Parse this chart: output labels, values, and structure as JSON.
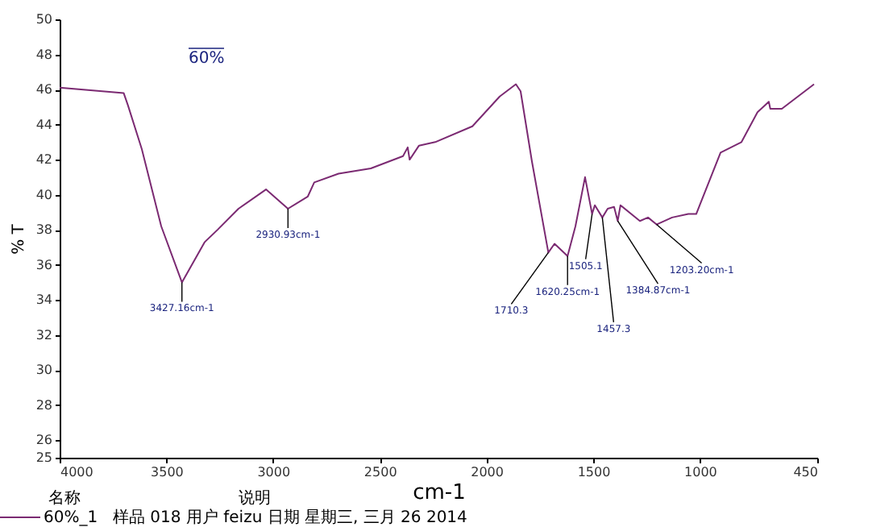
{
  "chart_data": {
    "type": "line",
    "xlabel": "cm-1",
    "ylabel": "% T",
    "x": [
      4000,
      3700,
      3680,
      3615,
      3524,
      3427,
      3320,
      3260,
      3162,
      3033,
      2930,
      2837,
      2807,
      2693,
      2542,
      2391,
      2369,
      2360,
      2316,
      2240,
      2066,
      1938,
      1862,
      1840,
      1787,
      1710,
      1681,
      1620,
      1583,
      1538,
      1505,
      1492,
      1457,
      1432,
      1402,
      1385,
      1372,
      1281,
      1243,
      1203,
      1130,
      1054,
      1017,
      903,
      805,
      730,
      677,
      670,
      616,
      465
    ],
    "series": [
      {
        "name": "60%_1",
        "color": "#7b2a72",
        "values": [
          46.1,
          45.8,
          45.1,
          42.6,
          38.2,
          35.0,
          37.3,
          38.0,
          39.2,
          40.3,
          39.2,
          39.9,
          40.7,
          41.2,
          41.5,
          42.2,
          42.7,
          42.0,
          42.8,
          43.0,
          43.9,
          45.6,
          46.3,
          45.9,
          41.9,
          36.7,
          37.2,
          36.5,
          38.2,
          41.0,
          38.9,
          39.4,
          38.7,
          39.2,
          39.3,
          38.5,
          39.4,
          38.5,
          38.7,
          38.3,
          38.7,
          38.9,
          38.9,
          42.4,
          43.0,
          44.7,
          45.3,
          44.9,
          44.9,
          46.3
        ]
      }
    ],
    "xlim": [
      4000,
      450
    ],
    "xticks": [
      4000,
      3500,
      3000,
      2500,
      2000,
      1500,
      1000,
      450
    ],
    "ylim": [
      25,
      50
    ],
    "yticks": [
      25,
      26,
      28,
      30,
      32,
      34,
      36,
      38,
      40,
      42,
      44,
      46,
      48,
      50
    ],
    "grid": false,
    "legend": "bottom",
    "line_style": "solid",
    "marker": "none",
    "annotations": [
      {
        "text": "3427.16cm-1",
        "x": 3427,
        "y": 35.0
      },
      {
        "text": "2930.93cm-1",
        "x": 2930,
        "y": 39.2
      },
      {
        "text": "1710.3",
        "x": 1710,
        "y": 36.7
      },
      {
        "text": "1620.25cm-1",
        "x": 1620,
        "y": 36.5
      },
      {
        "text": "1505.1",
        "x": 1505,
        "y": 38.9
      },
      {
        "text": "1457.3",
        "x": 1457,
        "y": 38.7
      },
      {
        "text": "1384.87cm-1",
        "x": 1385,
        "y": 38.5
      },
      {
        "text": "1203.20cm-1",
        "x": 1203,
        "y": 38.3
      },
      "60%",
      "名称",
      "说明",
      "样品 018 用户 feizu 日期 星期三, 三月 26 2014"
    ]
  }
}
